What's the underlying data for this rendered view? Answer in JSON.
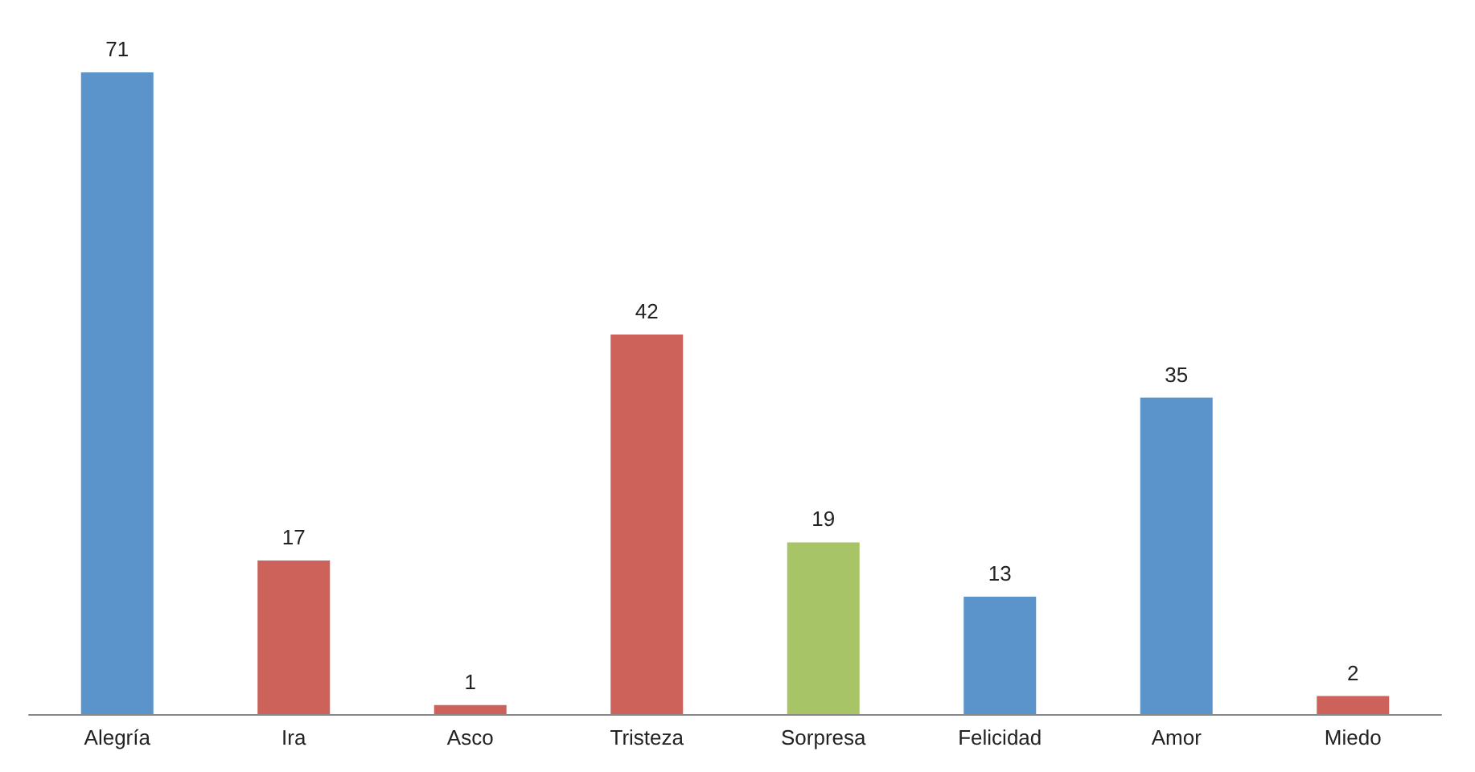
{
  "chart_data": {
    "type": "bar",
    "categories": [
      "Alegría",
      "Ira",
      "Asco",
      "Tristeza",
      "Sorpresa",
      "Felicidad",
      "Amor",
      "Miedo"
    ],
    "values": [
      71,
      17,
      1,
      42,
      19,
      13,
      35,
      2
    ],
    "colors": [
      "#5b93cb",
      "#cd625a",
      "#cd625a",
      "#cd625a",
      "#a7c466",
      "#5b93cb",
      "#5b93cb",
      "#cd625a"
    ],
    "data_labels": true
  }
}
